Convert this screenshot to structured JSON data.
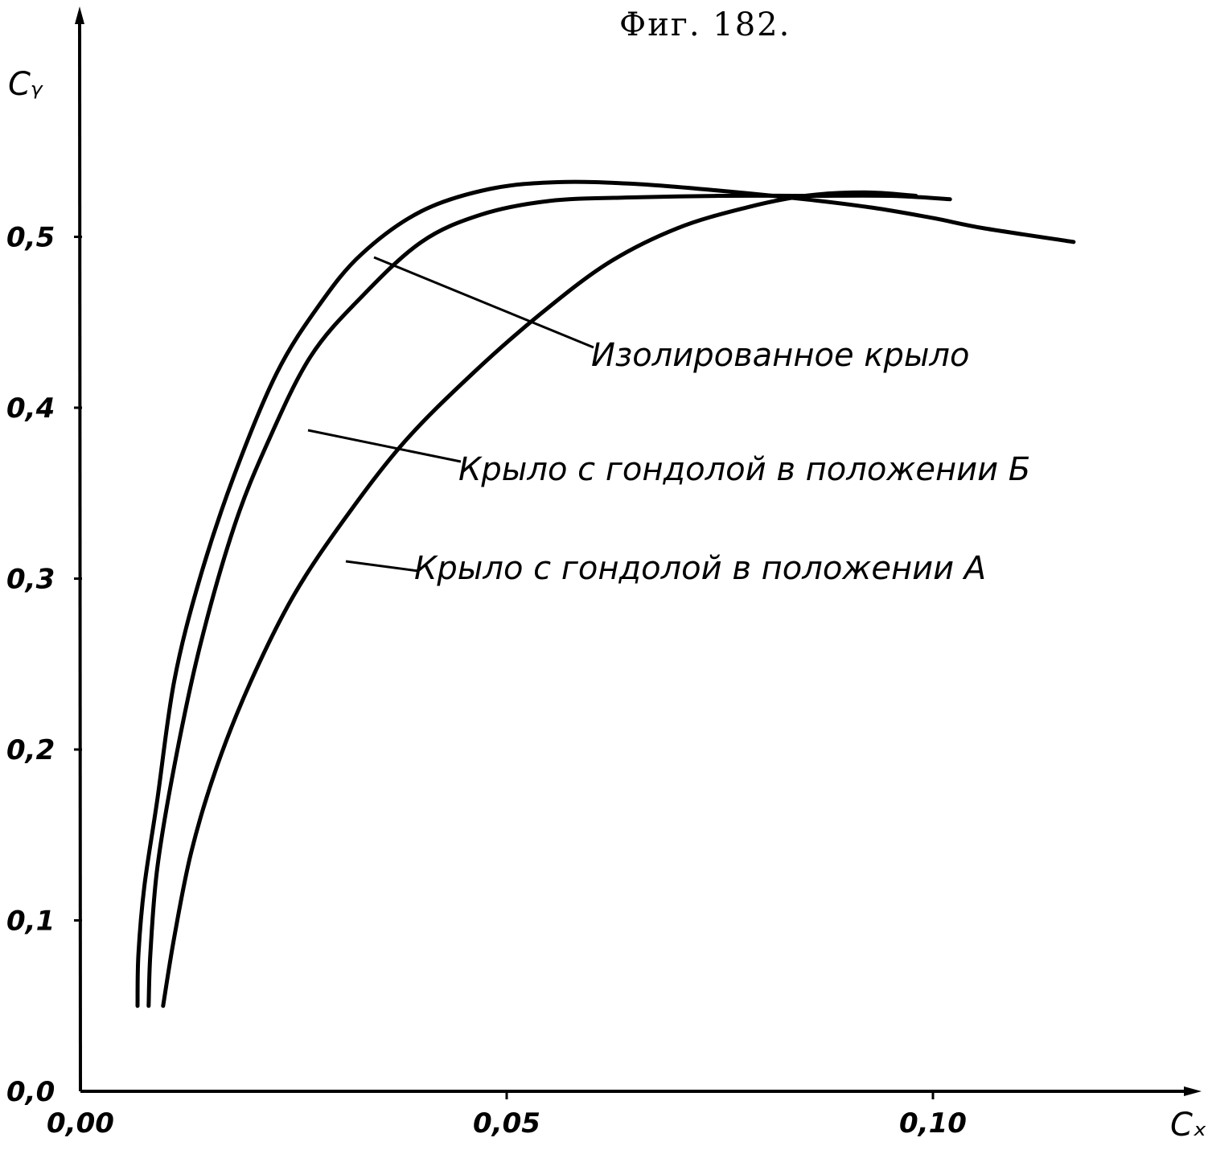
{
  "figure": {
    "title": "Фиг. 182."
  },
  "chart_data": {
    "type": "line",
    "title": "Фиг. 182.",
    "xlabel": "Cₓ",
    "ylabel": "Cᵧ",
    "xlim": [
      0,
      0.125
    ],
    "ylim": [
      0,
      0.58
    ],
    "x_ticks": [
      {
        "value": 0.0,
        "label": "0,00"
      },
      {
        "value": 0.05,
        "label": "0,05"
      },
      {
        "value": 0.1,
        "label": "0,10"
      }
    ],
    "y_ticks": [
      {
        "value": 0.0,
        "label": "0,0"
      },
      {
        "value": 0.1,
        "label": "0,1"
      },
      {
        "value": 0.2,
        "label": "0,2"
      },
      {
        "value": 0.3,
        "label": "0,3"
      },
      {
        "value": 0.4,
        "label": "0,4"
      },
      {
        "value": 0.5,
        "label": "0,5"
      }
    ],
    "grid": false,
    "series": [
      {
        "name": "Изолированное крыло",
        "points": [
          [
            0.0067,
            0.05
          ],
          [
            0.0068,
            0.08
          ],
          [
            0.0075,
            0.12
          ],
          [
            0.009,
            0.17
          ],
          [
            0.011,
            0.24
          ],
          [
            0.014,
            0.3
          ],
          [
            0.018,
            0.36
          ],
          [
            0.023,
            0.42
          ],
          [
            0.028,
            0.46
          ],
          [
            0.033,
            0.49
          ],
          [
            0.04,
            0.515
          ],
          [
            0.048,
            0.528
          ],
          [
            0.056,
            0.532
          ],
          [
            0.065,
            0.531
          ],
          [
            0.075,
            0.527
          ],
          [
            0.085,
            0.522
          ],
          [
            0.093,
            0.517
          ],
          [
            0.1,
            0.511
          ],
          [
            0.106,
            0.505
          ],
          [
            0.1165,
            0.497
          ]
        ]
      },
      {
        "name": "Крыло с гондолой в положении Б",
        "points": [
          [
            0.008,
            0.05
          ],
          [
            0.0082,
            0.08
          ],
          [
            0.009,
            0.13
          ],
          [
            0.011,
            0.19
          ],
          [
            0.014,
            0.26
          ],
          [
            0.018,
            0.33
          ],
          [
            0.022,
            0.38
          ],
          [
            0.027,
            0.43
          ],
          [
            0.033,
            0.465
          ],
          [
            0.04,
            0.497
          ],
          [
            0.047,
            0.513
          ],
          [
            0.055,
            0.521
          ],
          [
            0.064,
            0.523
          ],
          [
            0.075,
            0.524
          ],
          [
            0.085,
            0.524
          ],
          [
            0.095,
            0.524
          ],
          [
            0.102,
            0.522
          ]
        ]
      },
      {
        "name": "Крыло с гондолой в положении А",
        "points": [
          [
            0.0097,
            0.05
          ],
          [
            0.011,
            0.09
          ],
          [
            0.013,
            0.14
          ],
          [
            0.016,
            0.19
          ],
          [
            0.02,
            0.24
          ],
          [
            0.025,
            0.29
          ],
          [
            0.031,
            0.335
          ],
          [
            0.038,
            0.38
          ],
          [
            0.046,
            0.42
          ],
          [
            0.054,
            0.455
          ],
          [
            0.062,
            0.485
          ],
          [
            0.07,
            0.505
          ],
          [
            0.078,
            0.517
          ],
          [
            0.085,
            0.524
          ],
          [
            0.092,
            0.526
          ],
          [
            0.098,
            0.524
          ]
        ]
      }
    ],
    "annotations": [
      {
        "text": "Изолированное крыло",
        "series": 0
      },
      {
        "text": "Крыло с гондолой в положении Б",
        "series": 1
      },
      {
        "text": "Крыло с гондолой в положении А",
        "series": 2
      }
    ]
  }
}
